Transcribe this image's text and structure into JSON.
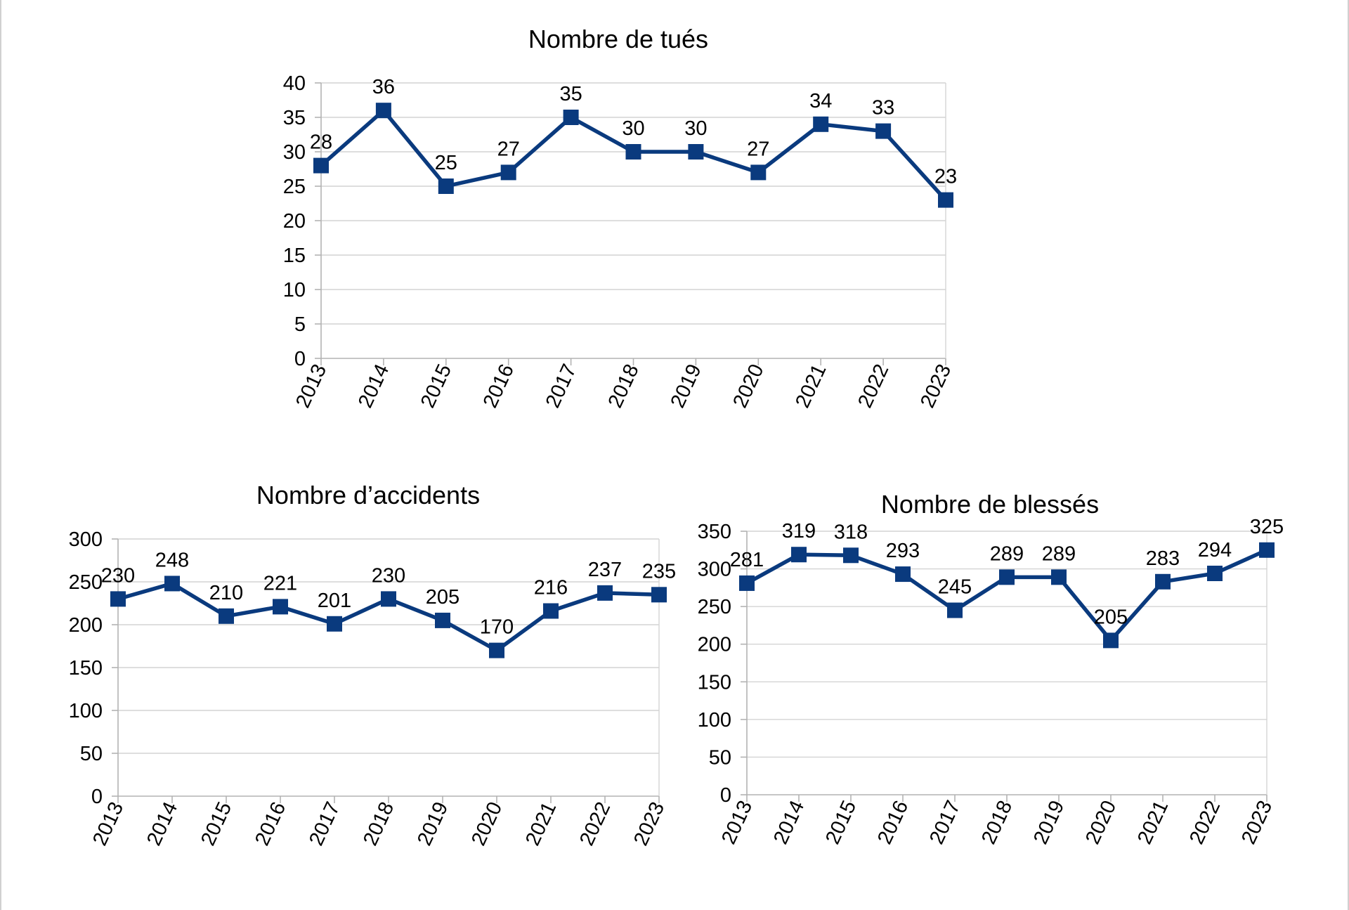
{
  "chart_data": [
    {
      "id": "tues",
      "type": "line",
      "title": "Nombre de tués",
      "categories": [
        "2013",
        "2014",
        "2015",
        "2016",
        "2017",
        "2018",
        "2019",
        "2020",
        "2021",
        "2022",
        "2023"
      ],
      "series": [
        {
          "values": [
            28,
            36,
            25,
            27,
            35,
            30,
            30,
            27,
            34,
            33,
            23
          ]
        }
      ],
      "ylim": [
        0,
        40
      ],
      "yticks": [
        0,
        5,
        10,
        15,
        20,
        25,
        30,
        35,
        40
      ],
      "grid": true,
      "legend": "none",
      "color": "#0a3a7e"
    },
    {
      "id": "accidents",
      "type": "line",
      "title": "Nombre d’accidents",
      "categories": [
        "2013",
        "2014",
        "2015",
        "2016",
        "2017",
        "2018",
        "2019",
        "2020",
        "2021",
        "2022",
        "2023"
      ],
      "series": [
        {
          "values": [
            230,
            248,
            210,
            221,
            201,
            230,
            205,
            170,
            216,
            237,
            235
          ]
        }
      ],
      "ylim": [
        0,
        300
      ],
      "yticks": [
        0,
        50,
        100,
        150,
        200,
        250,
        300
      ],
      "grid": true,
      "legend": "none",
      "color": "#0a3a7e"
    },
    {
      "id": "blesses",
      "type": "line",
      "title": "Nombre de blessés",
      "categories": [
        "2013",
        "2014",
        "2015",
        "2016",
        "2017",
        "2018",
        "2019",
        "2020",
        "2021",
        "2022",
        "2023"
      ],
      "series": [
        {
          "values": [
            281,
            319,
            318,
            293,
            245,
            289,
            289,
            205,
            283,
            294,
            325
          ]
        }
      ],
      "ylim": [
        0,
        350
      ],
      "yticks": [
        0,
        50,
        100,
        150,
        200,
        250,
        300,
        350
      ],
      "grid": true,
      "legend": "none",
      "color": "#0a3a7e"
    }
  ]
}
